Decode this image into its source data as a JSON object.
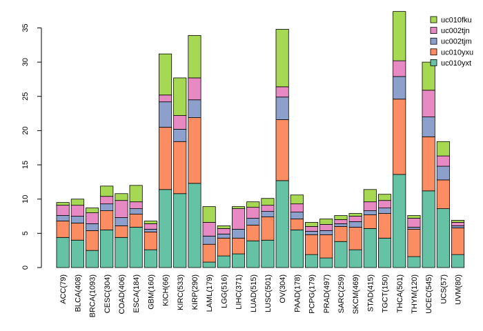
{
  "chart_data": {
    "type": "bar",
    "stacked": true,
    "title": "",
    "xlabel": "",
    "ylabel": "",
    "ylim": [
      0,
      37.5
    ],
    "yticks": [
      0,
      5,
      10,
      15,
      20,
      25,
      30,
      35
    ],
    "legend_position": "top-right",
    "categories": [
      "ACC(79)",
      "BLCA(408)",
      "BRCA(1093)",
      "CESC(304)",
      "COAD(406)",
      "ESCA(184)",
      "GBM(160)",
      "KICH(66)",
      "KIRC(533)",
      "KIRP(290)",
      "LAML(179)",
      "LGG(516)",
      "LIHC(371)",
      "LUAD(515)",
      "LUSC(501)",
      "OV(304)",
      "PAAD(178)",
      "PCPG(179)",
      "PRAD(497)",
      "SARC(259)",
      "SKCM(469)",
      "STAD(415)",
      "TGCT(150)",
      "THCA(501)",
      "THYM(120)",
      "UCEC(545)",
      "UCS(57)",
      "UVM(80)"
    ],
    "series": [
      {
        "name": "uc010yxt",
        "color": "#66c2a5",
        "values": [
          4.4,
          4.0,
          2.5,
          5.5,
          4.4,
          5.9,
          2.6,
          11.4,
          10.8,
          12.3,
          0.8,
          1.7,
          2.0,
          3.9,
          4.0,
          12.7,
          5.5,
          1.9,
          1.4,
          3.8,
          2.6,
          5.7,
          4.3,
          13.6,
          1.6,
          11.2,
          8.6,
          1.9
        ]
      },
      {
        "name": "uc010yxu",
        "color": "#fc8d62",
        "values": [
          2.4,
          2.5,
          2.9,
          2.8,
          1.7,
          1.9,
          2.6,
          9.1,
          7.6,
          9.6,
          2.6,
          2.6,
          2.3,
          2.3,
          3.4,
          8.9,
          1.6,
          2.9,
          3.4,
          2.2,
          3.3,
          2.0,
          3.6,
          11.0,
          4.0,
          7.9,
          4.2,
          3.9
        ]
      },
      {
        "name": "uc002tjm",
        "color": "#8da0cb",
        "values": [
          0.8,
          1.0,
          1.0,
          1.0,
          1.2,
          0.8,
          0.4,
          3.7,
          1.8,
          2.6,
          1.2,
          0.6,
          1.3,
          1.0,
          0.8,
          3.3,
          1.0,
          0.5,
          0.6,
          0.4,
          0.8,
          0.6,
          0.8,
          3.3,
          0.3,
          2.9,
          2.0,
          0.3
        ]
      },
      {
        "name": "uc002tjn",
        "color": "#e78ac3",
        "values": [
          1.5,
          1.6,
          1.6,
          1.1,
          2.5,
          1.0,
          0.8,
          1.0,
          2.0,
          3.2,
          2.0,
          0.8,
          3.0,
          1.6,
          0.9,
          1.5,
          1.2,
          0.7,
          0.9,
          0.6,
          0.8,
          1.3,
          1.1,
          2.3,
          1.3,
          3.9,
          1.5,
          0.5
        ]
      },
      {
        "name": "uc010fku",
        "color": "#a6d854",
        "values": [
          0.4,
          0.9,
          0.7,
          1.5,
          1.0,
          2.4,
          0.4,
          6.0,
          5.5,
          6.2,
          2.3,
          0.4,
          0.3,
          0.8,
          1.0,
          8.4,
          1.3,
          0.6,
          0.8,
          0.6,
          0.4,
          1.8,
          0.9,
          7.2,
          0.4,
          4.1,
          2.1,
          0.3
        ]
      }
    ]
  }
}
